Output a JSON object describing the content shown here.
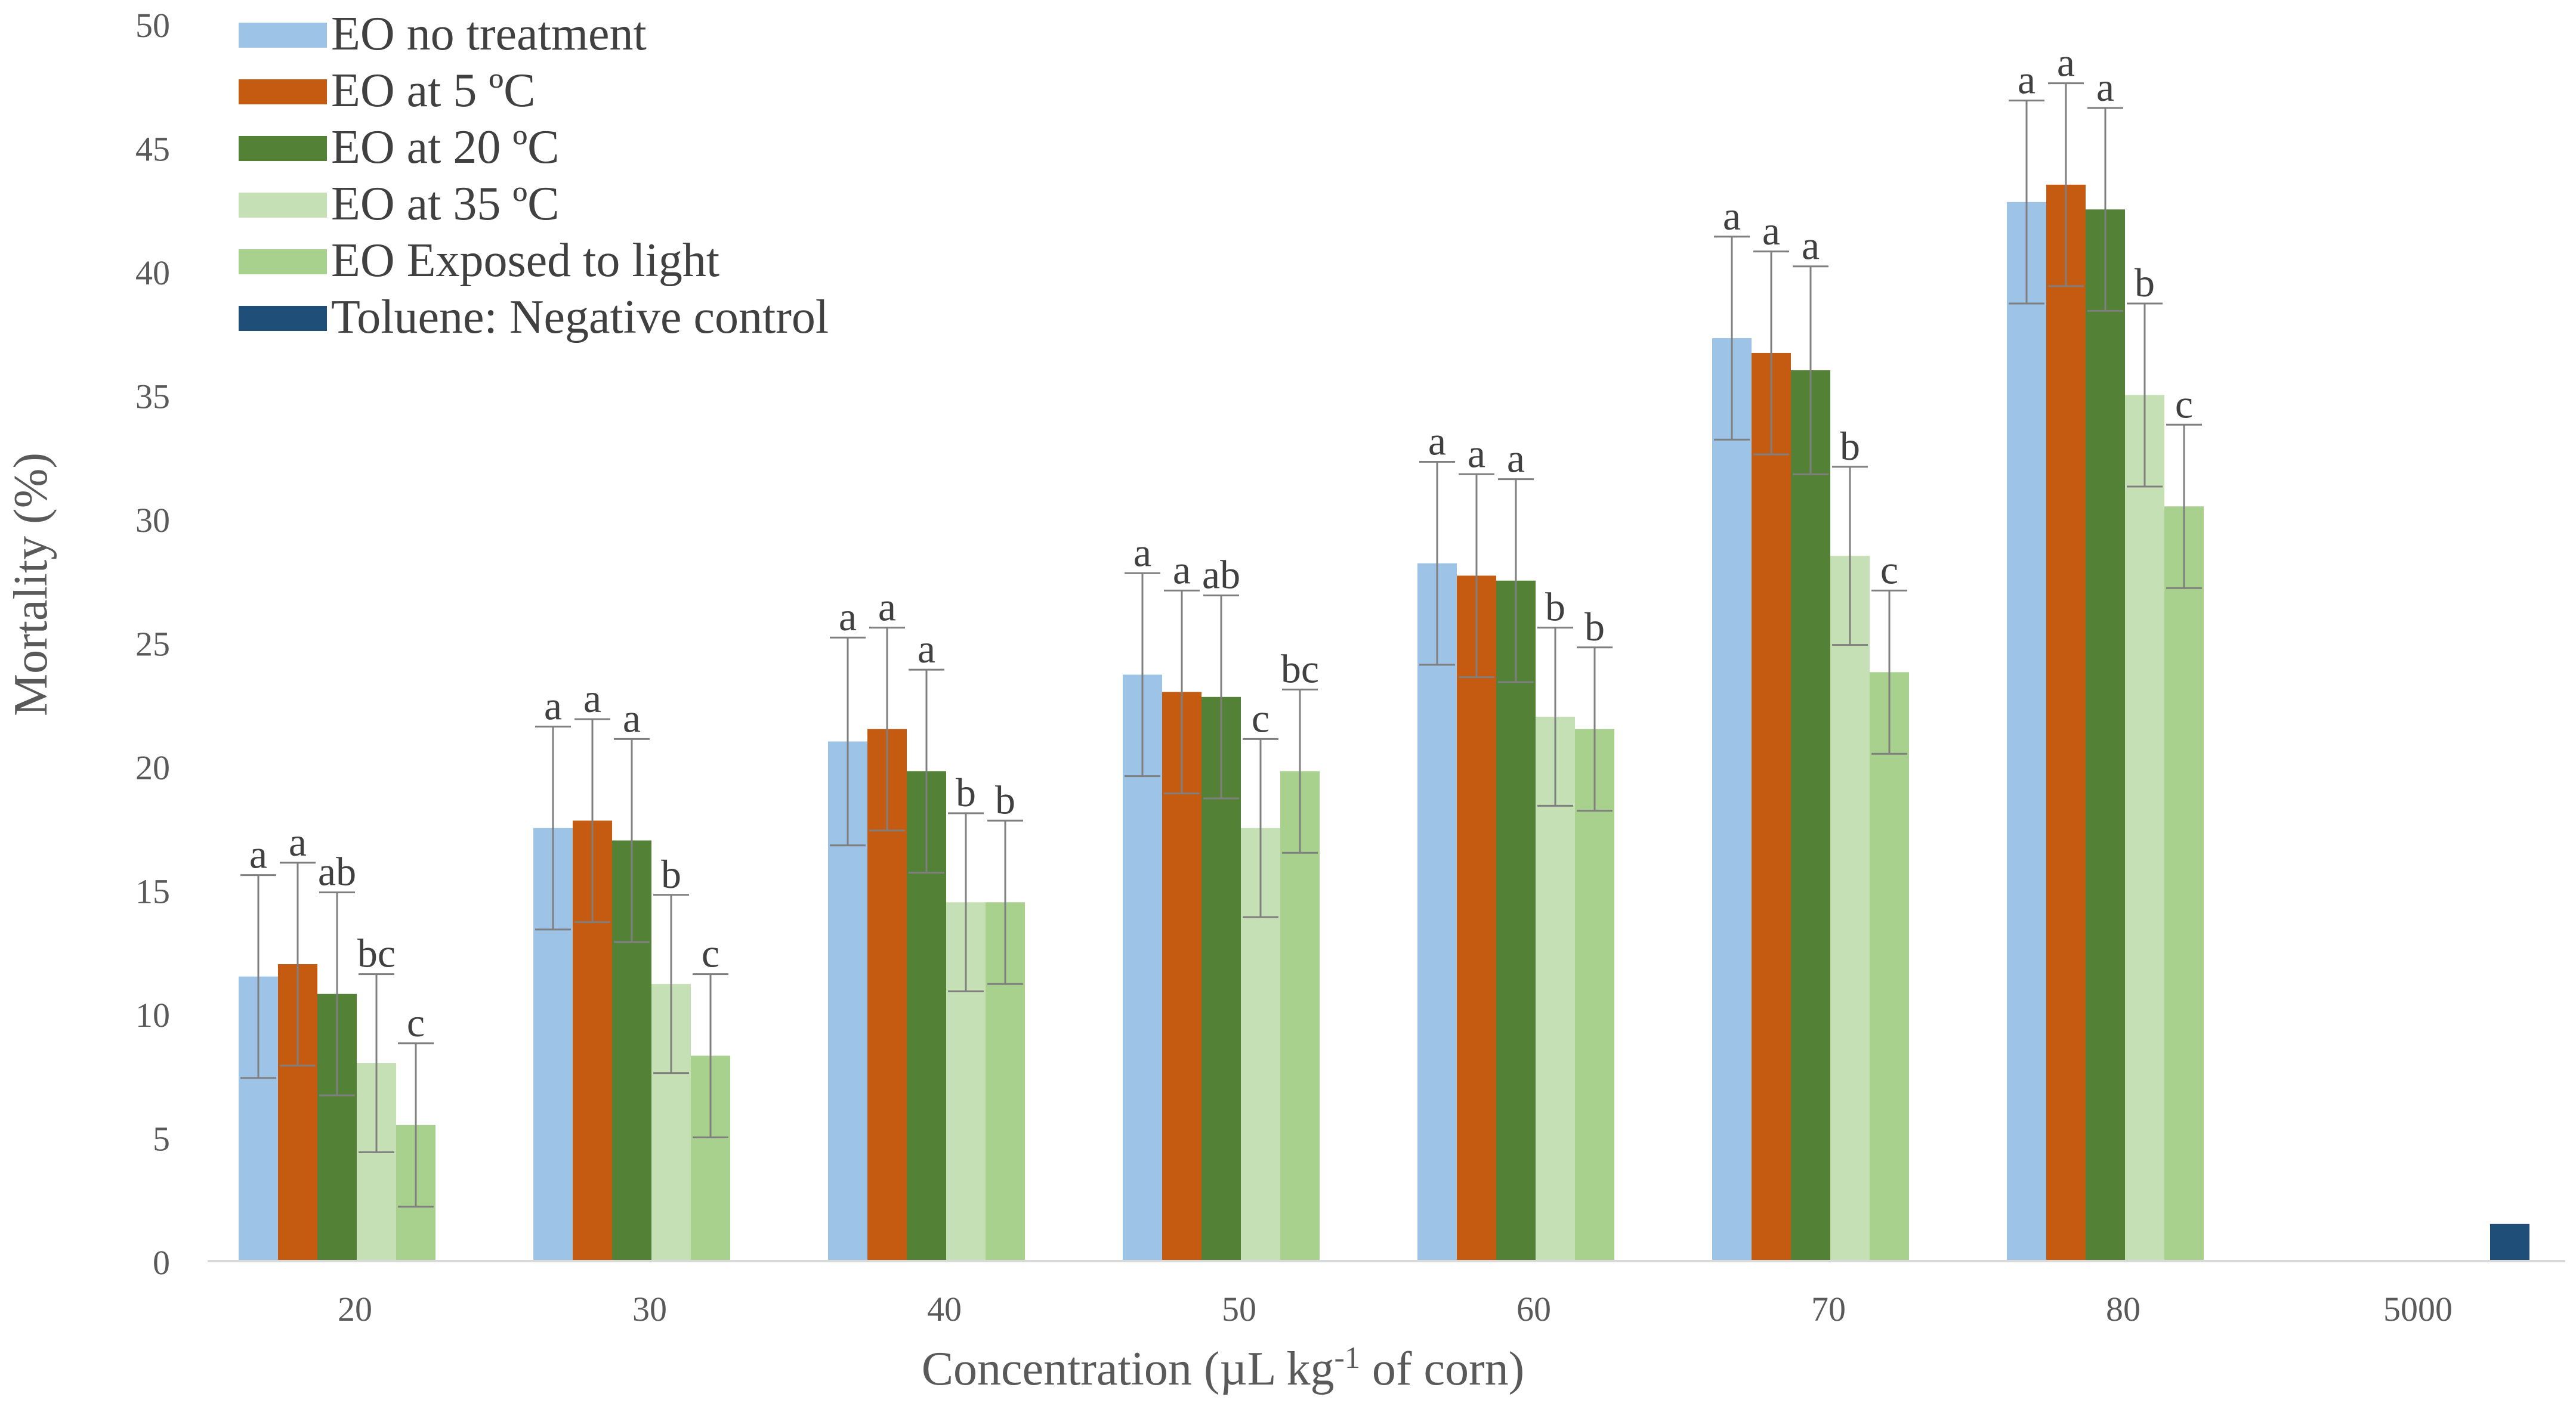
{
  "chart_data": {
    "type": "bar",
    "title": "",
    "xlabel": "Concentration (µL kg-1 of corn)",
    "xlabel_parts": {
      "main": "Concentration (µL kg",
      "sup": "-1",
      "tail": " of corn)"
    },
    "ylabel": "Mortality  (%)",
    "ylim": [
      0,
      50
    ],
    "yticks": [
      0,
      5,
      10,
      15,
      20,
      25,
      30,
      35,
      40,
      45,
      50
    ],
    "grid": false,
    "legend_position": "top-left",
    "categories": [
      "20",
      "30",
      "40",
      "50",
      "60",
      "70",
      "80",
      "5000"
    ],
    "series": [
      {
        "name": "EO no treatment",
        "color": "#9DC3E6",
        "values": [
          11.5,
          17.5,
          21.0,
          23.7,
          28.2,
          37.3,
          42.8,
          null
        ],
        "errors": [
          4.1,
          4.1,
          4.2,
          4.1,
          4.1,
          4.1,
          4.1,
          null
        ],
        "letters": [
          "a",
          "a",
          "a",
          "a",
          "a",
          "a",
          "a",
          null
        ]
      },
      {
        "name": "EO at 5 ºC",
        "color": "#C55A11",
        "values": [
          12.0,
          17.8,
          21.5,
          23.0,
          27.7,
          36.7,
          43.5,
          null
        ],
        "errors": [
          4.1,
          4.1,
          4.1,
          4.1,
          4.1,
          4.1,
          4.1,
          null
        ],
        "letters": [
          "a",
          "a",
          "a",
          "a",
          "a",
          "a",
          "a",
          null
        ]
      },
      {
        "name": "EO at 20 ºC",
        "color": "#538135",
        "values": [
          10.8,
          17.0,
          19.8,
          22.8,
          27.5,
          36.0,
          42.5,
          null
        ],
        "errors": [
          4.1,
          4.1,
          4.1,
          4.1,
          4.1,
          4.2,
          4.1,
          null
        ],
        "letters": [
          "ab",
          "a",
          "a",
          "ab",
          "a",
          "a",
          "a",
          null
        ]
      },
      {
        "name": "EO at 35 ºC",
        "color": "#C5E0B4",
        "values": [
          8.0,
          11.2,
          14.5,
          17.5,
          22.0,
          28.5,
          35.0,
          null
        ],
        "errors": [
          3.6,
          3.6,
          3.6,
          3.6,
          3.6,
          3.6,
          3.7,
          null
        ],
        "letters": [
          "bc",
          "b",
          "b",
          "c",
          "b",
          "b",
          "b",
          null
        ]
      },
      {
        "name": "EO Exposed to light",
        "color": "#A9D18E",
        "values": [
          5.5,
          8.3,
          14.5,
          19.8,
          21.5,
          23.8,
          30.5,
          null
        ],
        "errors": [
          3.3,
          3.3,
          3.3,
          3.3,
          3.3,
          3.3,
          3.3,
          null
        ],
        "letters": [
          "c",
          "c",
          "b",
          "bc",
          "b",
          "c",
          "c",
          null
        ]
      },
      {
        "name": "Toluene: Negative control",
        "color": "#1F4E79",
        "values": [
          null,
          null,
          null,
          null,
          null,
          null,
          null,
          1.5
        ],
        "errors": [
          null,
          null,
          null,
          null,
          null,
          null,
          null,
          null
        ],
        "letters": [
          null,
          null,
          null,
          null,
          null,
          null,
          null,
          null
        ]
      }
    ]
  }
}
